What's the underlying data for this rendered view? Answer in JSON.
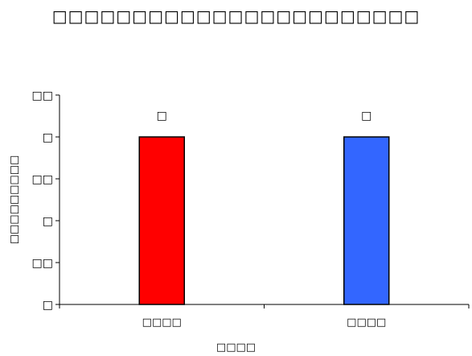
{
  "chart_data": {
    "type": "bar",
    "title": "□□□□□□□□□□□□□□□□□□□□□□□",
    "xlabel": "□□□□",
    "ylabel": "□□□□□□□□□",
    "categories": [
      "□□□□",
      "□□□□"
    ],
    "values": [
      4,
      4
    ],
    "data_labels": [
      "□",
      "□"
    ],
    "colors": [
      "#ff0000",
      "#3366ff"
    ],
    "ylim": [
      0,
      5
    ],
    "yticks": [
      0,
      1,
      2,
      3,
      4,
      5
    ],
    "ytick_labels": [
      "□",
      "□□",
      "□",
      "□□",
      "□",
      "□□"
    ],
    "grid": false,
    "legend": "none"
  }
}
